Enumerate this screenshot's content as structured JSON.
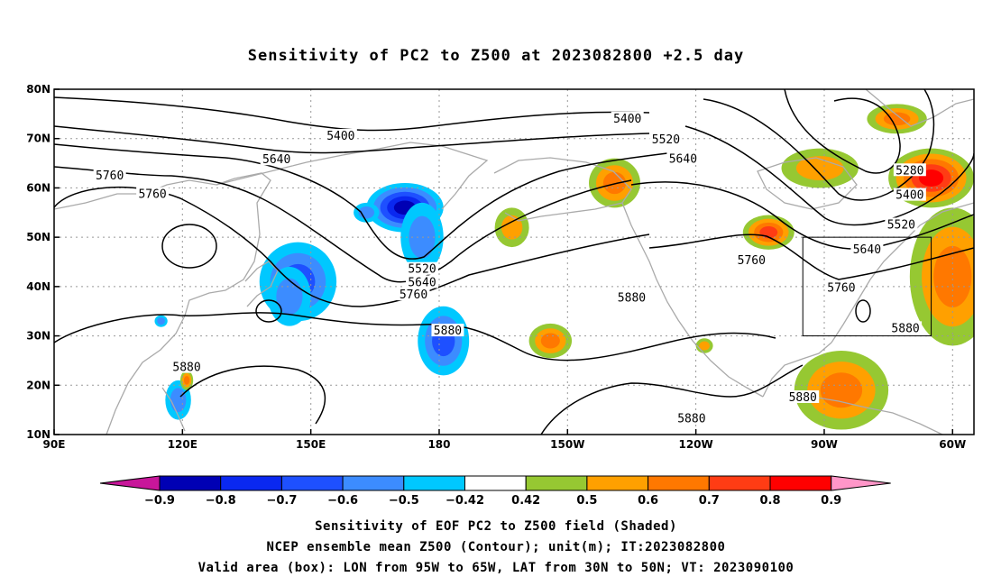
{
  "title": "Sensitivity of PC2 to Z500 at 2023082800 +2.5 day",
  "map": {
    "lon_range_east": [
      90,
      305
    ],
    "lat_range": [
      10,
      80
    ],
    "lon_ticks": [
      {
        "lon": 90,
        "label": "90E"
      },
      {
        "lon": 120,
        "label": "120E"
      },
      {
        "lon": 150,
        "label": "150E"
      },
      {
        "lon": 180,
        "label": "180"
      },
      {
        "lon": 210,
        "label": "150W"
      },
      {
        "lon": 240,
        "label": "120W"
      },
      {
        "lon": 270,
        "label": "90W"
      },
      {
        "lon": 300,
        "label": "60W"
      }
    ],
    "lat_ticks": [
      {
        "lat": 10,
        "label": "10N"
      },
      {
        "lat": 20,
        "label": "20N"
      },
      {
        "lat": 30,
        "label": "30N"
      },
      {
        "lat": 40,
        "label": "40N"
      },
      {
        "lat": 50,
        "label": "50N"
      },
      {
        "lat": 60,
        "label": "60N"
      },
      {
        "lat": 70,
        "label": "70N"
      },
      {
        "lat": 80,
        "label": "80N"
      }
    ],
    "grid": true,
    "valid_box": {
      "lon_min": 265,
      "lon_max": 295,
      "lat_min": 30,
      "lat_max": 50
    }
  },
  "contour_labels": [
    {
      "text": "5400",
      "lon": 157,
      "lat": 70.5
    },
    {
      "text": "5400",
      "lon": 224,
      "lat": 74
    },
    {
      "text": "5520",
      "lon": 233,
      "lat": 69.8
    },
    {
      "text": "5640",
      "lon": 142,
      "lat": 65.7
    },
    {
      "text": "5640",
      "lon": 237,
      "lat": 65.8
    },
    {
      "text": "5760",
      "lon": 103,
      "lat": 62.5
    },
    {
      "text": "5760",
      "lon": 113,
      "lat": 58.7
    },
    {
      "text": "5520",
      "lon": 176,
      "lat": 43.5
    },
    {
      "text": "5640",
      "lon": 176,
      "lat": 40.8
    },
    {
      "text": "5760",
      "lon": 174,
      "lat": 38.3
    },
    {
      "text": "5880",
      "lon": 182,
      "lat": 31
    },
    {
      "text": "5880",
      "lon": 225,
      "lat": 37.7
    },
    {
      "text": "5760",
      "lon": 253,
      "lat": 45.3
    },
    {
      "text": "5640",
      "lon": 280,
      "lat": 47.5
    },
    {
      "text": "5760",
      "lon": 274,
      "lat": 39.7
    },
    {
      "text": "5880",
      "lon": 121,
      "lat": 23.6
    },
    {
      "text": "5880",
      "lon": 289,
      "lat": 31.5
    },
    {
      "text": "5880",
      "lon": 265,
      "lat": 17.5
    },
    {
      "text": "5880",
      "lon": 239,
      "lat": 13.2
    },
    {
      "text": "5280",
      "lon": 290,
      "lat": 63.5
    },
    {
      "text": "5400",
      "lon": 290,
      "lat": 58.5
    },
    {
      "text": "5520",
      "lon": 288,
      "lat": 52.5
    }
  ],
  "sensitivity_blobs": [
    {
      "lon": 147,
      "lat": 41,
      "rx": 9,
      "ry": 8,
      "value": -0.6
    },
    {
      "lon": 145,
      "lat": 38,
      "rx": 5,
      "ry": 6,
      "value": -0.5
    },
    {
      "lon": 172,
      "lat": 56,
      "rx": 9,
      "ry": 5,
      "value": -0.8
    },
    {
      "lon": 176,
      "lat": 50,
      "rx": 5,
      "ry": 7,
      "value": -0.5
    },
    {
      "lon": 181,
      "lat": 29,
      "rx": 6,
      "ry": 7,
      "value": -0.6
    },
    {
      "lon": 119,
      "lat": 17,
      "rx": 3,
      "ry": 4,
      "value": -0.5
    },
    {
      "lon": 121,
      "lat": 21,
      "rx": 1.5,
      "ry": 2,
      "value": 0.6
    },
    {
      "lon": 197,
      "lat": 52,
      "rx": 4,
      "ry": 4,
      "value": 0.5
    },
    {
      "lon": 221,
      "lat": 61,
      "rx": 6,
      "ry": 5,
      "value": 0.6
    },
    {
      "lon": 206,
      "lat": 29,
      "rx": 5,
      "ry": 3.5,
      "value": 0.6
    },
    {
      "lon": 257,
      "lat": 51,
      "rx": 6,
      "ry": 3.5,
      "value": 0.7
    },
    {
      "lon": 274,
      "lat": 19,
      "rx": 11,
      "ry": 8,
      "value": 0.6
    },
    {
      "lon": 300,
      "lat": 42,
      "rx": 10,
      "ry": 14,
      "value": 0.6
    },
    {
      "lon": 295,
      "lat": 62,
      "rx": 10,
      "ry": 6,
      "value": 0.8
    },
    {
      "lon": 287,
      "lat": 74,
      "rx": 7,
      "ry": 3,
      "value": 0.6
    },
    {
      "lon": 269,
      "lat": 64,
      "rx": 9,
      "ry": 4,
      "value": 0.5
    },
    {
      "lon": 242,
      "lat": 28,
      "rx": 2,
      "ry": 1.5,
      "value": 0.5
    },
    {
      "lon": 115,
      "lat": 33,
      "rx": 1.5,
      "ry": 1.2,
      "value": -0.5
    },
    {
      "lon": 163,
      "lat": 55,
      "rx": 3,
      "ry": 2,
      "value": -0.5
    }
  ],
  "colorbar": {
    "labels": [
      "-0.9",
      "-0.8",
      "-0.7",
      "-0.6",
      "-0.5",
      "-0.42",
      "0.42",
      "0.5",
      "0.6",
      "0.7",
      "0.8",
      "0.9"
    ],
    "colors": {
      "lt_-0.9": "#c8169a",
      "-0.9_-0.8": "#0000b4",
      "-0.8_-0.7": "#0a28f0",
      "-0.7_-0.6": "#1e50ff",
      "-0.6_-0.5": "#3c8cff",
      "-0.5_-0.42": "#00c8ff",
      "-0.42_0.42": "#ffffff",
      "0.42_0.5": "#96c832",
      "0.5_0.6": "#ffa000",
      "0.6_0.7": "#ff7800",
      "0.7_0.8": "#ff3c14",
      "0.8_0.9": "#ff0000",
      "gt_0.9": "#ff96c8"
    }
  },
  "footer": {
    "line1": "Sensitivity of EOF PC2 to Z500 field (Shaded)",
    "line2": "NCEP ensemble mean Z500 (Contour); unit(m); IT:2023082800",
    "line3": "Valid area (box): LON from 95W to 65W, LAT from 30N to 50N; VT: 2023090100"
  }
}
